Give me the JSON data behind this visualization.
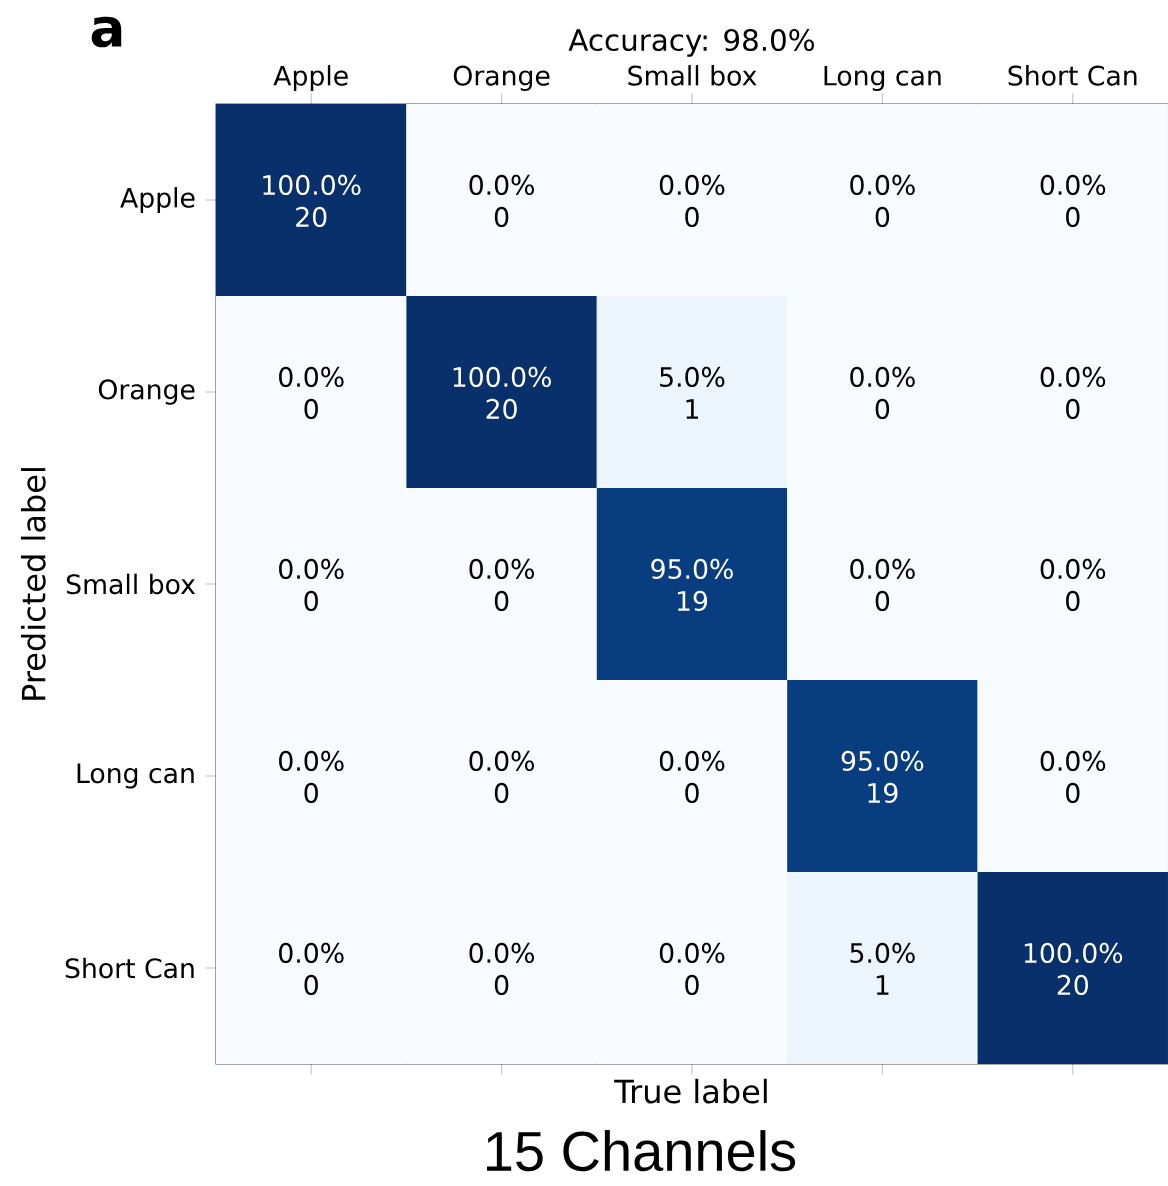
{
  "chart_data": {
    "type": "heatmap",
    "title": "Accuracy: 98.0%",
    "xlabel": "True label",
    "ylabel": "Predicted label",
    "categories": [
      "Apple",
      "Orange",
      "Small box",
      "Long can",
      "Short Can"
    ],
    "y_categories": [
      "Apple",
      "Orange",
      "Small box",
      "Long can",
      "Short Can"
    ],
    "cells": [
      [
        100.0,
        0.0,
        0.0,
        0.0,
        0.0
      ],
      [
        0.0,
        100.0,
        5.0,
        0.0,
        0.0
      ],
      [
        0.0,
        0.0,
        95.0,
        0.0,
        0.0
      ],
      [
        0.0,
        0.0,
        0.0,
        95.0,
        0.0
      ],
      [
        0.0,
        0.0,
        0.0,
        5.0,
        100.0
      ]
    ],
    "cell_labels": [
      [
        "100.0%",
        "0.0%",
        "0.0%",
        "0.0%",
        "0.0%"
      ],
      [
        "0.0%",
        "100.0%",
        "5.0%",
        "0.0%",
        "0.0%"
      ],
      [
        "0.0%",
        "0.0%",
        "95.0%",
        "0.0%",
        "0.0%"
      ],
      [
        "0.0%",
        "0.0%",
        "0.0%",
        "95.0%",
        "0.0%"
      ],
      [
        "0.0%",
        "0.0%",
        "0.0%",
        "5.0%",
        "100.0%"
      ]
    ],
    "annotations": [
      "a",
      "15 Channels",
      "20",
      "0",
      "0",
      "0",
      "0",
      "0",
      "20",
      "1",
      "0",
      "0",
      "0",
      "0",
      "19",
      "0",
      "0",
      "0",
      "0",
      "0",
      "19",
      "0",
      "0",
      "0",
      "0",
      "1",
      "20"
    ]
  }
}
